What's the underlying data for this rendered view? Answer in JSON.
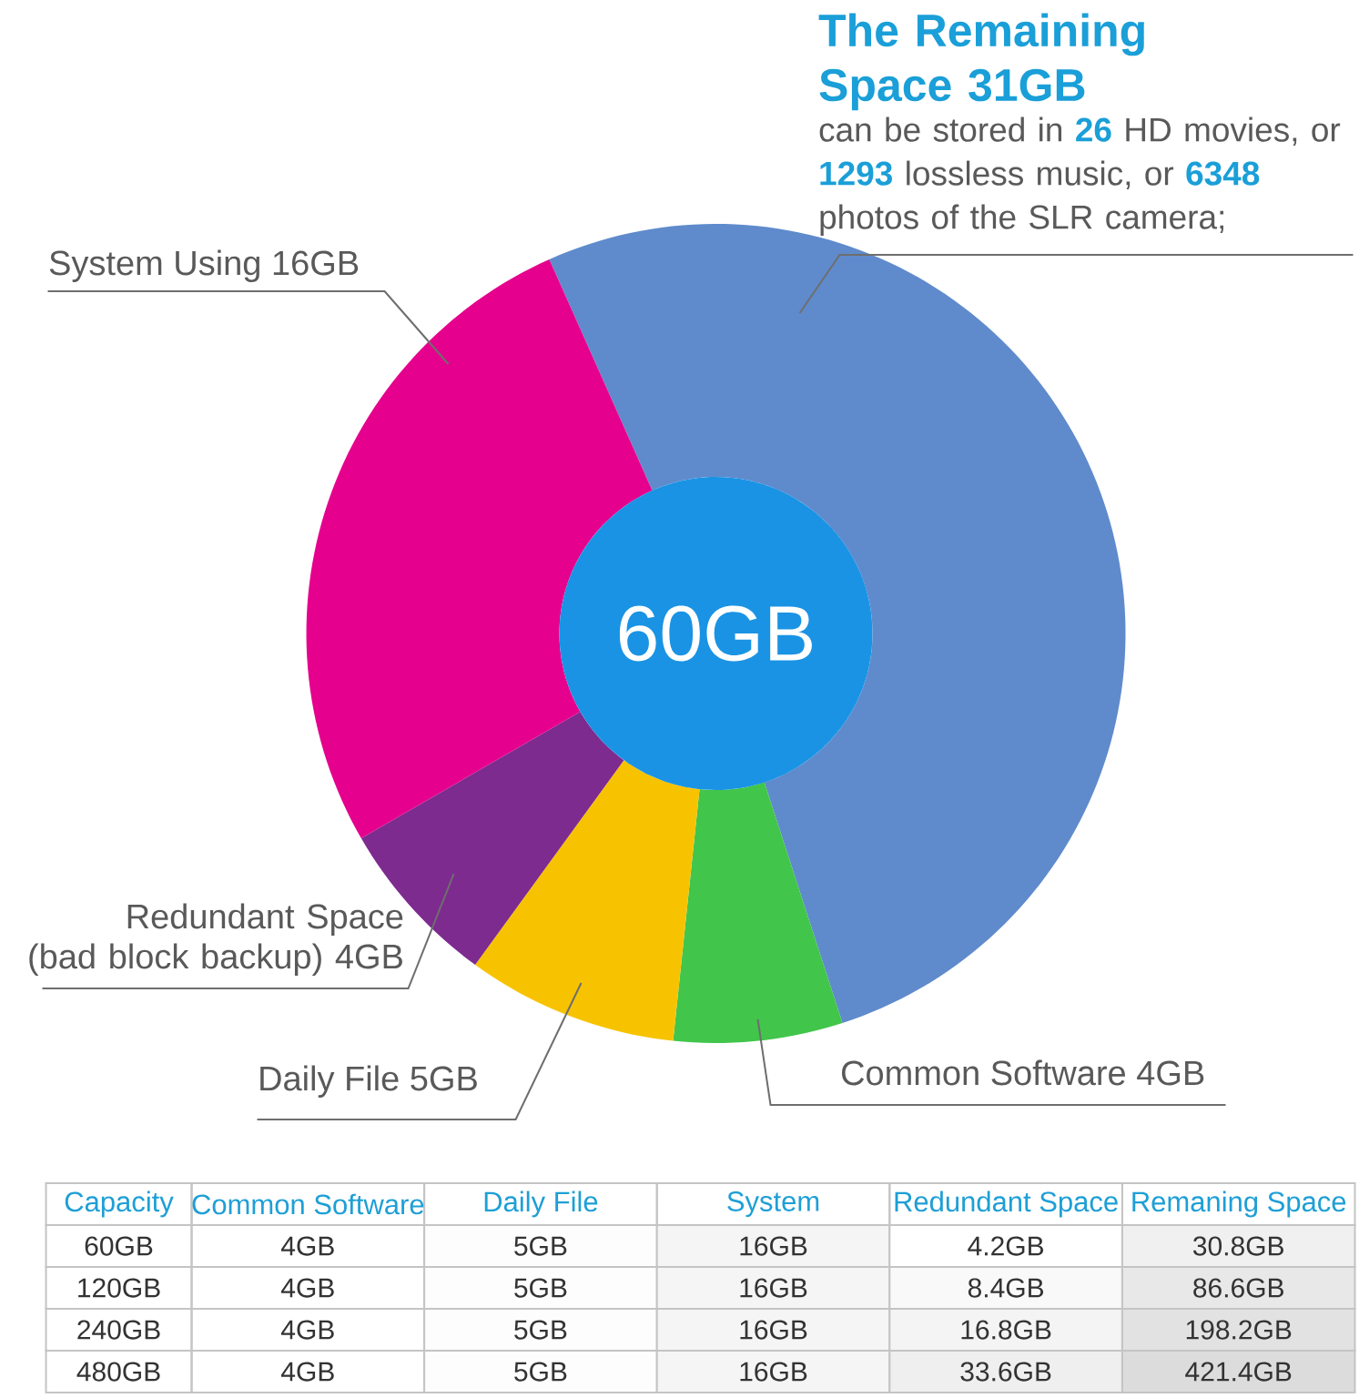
{
  "chart_data": [
    {
      "type": "donut",
      "title": "60GB",
      "categories": [
        "The Remaining Space 31GB",
        "Common Software 4GB",
        "Daily File 5GB",
        "Redundant Space (bad block backup) 4GB",
        "System Using 16GB"
      ],
      "values": [
        31,
        4,
        5,
        4,
        16
      ],
      "colors": [
        "#5f8bcc",
        "#41c54b",
        "#f7c300",
        "#7d2b8f",
        "#e5008e"
      ],
      "annotations": [
        "can be stored in **26** HD movies, or **1293** lossless music, or **6348** photos of the SLR camera;"
      ]
    },
    {
      "type": "heatmap",
      "ylabel": "Capacity",
      "categories": [
        "Common Software",
        "Daily File",
        "System",
        "Redundant Space",
        "Remaning Space"
      ],
      "y_categories": [
        "60GB",
        "120GB",
        "240GB",
        "480GB"
      ],
      "cells": [
        [
          4,
          5,
          16,
          4.2,
          30.8
        ],
        [
          4,
          5,
          16,
          8.4,
          86.6
        ],
        [
          4,
          5,
          16,
          16.8,
          198.2
        ],
        [
          4,
          5,
          16,
          33.6,
          421.4
        ]
      ],
      "cell_labels": [
        [
          "4GB",
          "5GB",
          "16GB",
          "4.2GB",
          "30.8GB"
        ],
        [
          "4GB",
          "5GB",
          "16GB",
          "8.4GB",
          "86.6GB"
        ],
        [
          "4GB",
          "5GB",
          "16GB",
          "16.8GB",
          "198.2GB"
        ],
        [
          "4GB",
          "5GB",
          "16GB",
          "33.6GB",
          "421.4GB"
        ]
      ],
      "color": "#dcdcdc"
    }
  ]
}
